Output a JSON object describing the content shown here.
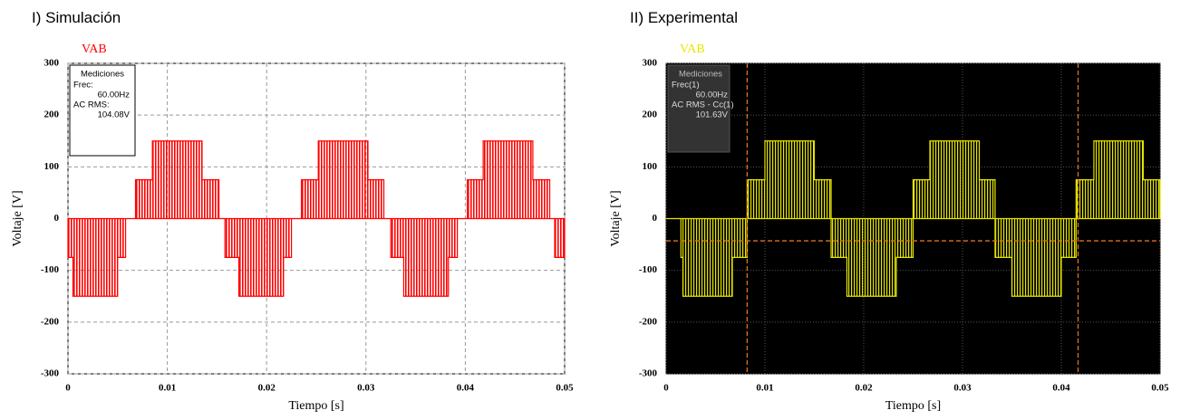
{
  "chart_data": [
    {
      "type": "line",
      "title": "I) Simulación",
      "xlabel": "Tiempo [s]",
      "ylabel": "Voltaje [V]",
      "xlim": [
        0,
        0.05
      ],
      "xticks": [
        0,
        0.01,
        0.02,
        0.03,
        0.04,
        0.05
      ],
      "ylim": [
        -300,
        300
      ],
      "yticks": [
        -300,
        -200,
        -100,
        0,
        100,
        200,
        300
      ],
      "grid": true,
      "background": "#ffffff",
      "grid_color": "#999999",
      "x": [
        0,
        0.0005,
        0.0005,
        0.005,
        0.005,
        0.0058,
        0.0058,
        0.0068,
        0.0068,
        0.0085,
        0.0085,
        0.0135,
        0.0135,
        0.0152,
        0.0152,
        0.0158,
        0.0158,
        0.0172,
        0.0172,
        0.0217,
        0.0217,
        0.0225,
        0.0225,
        0.0235,
        0.0235,
        0.0252,
        0.0252,
        0.0302,
        0.0302,
        0.0318,
        0.0318,
        0.0325,
        0.0325,
        0.0338,
        0.0338,
        0.0383,
        0.0383,
        0.0392,
        0.0392,
        0.0402,
        0.0402,
        0.0418,
        0.0418,
        0.0468,
        0.0468,
        0.0485,
        0.0485,
        0.049,
        0.049,
        0.05
      ],
      "series": [
        {
          "name": "VAB",
          "color": "#ff0000",
          "values": [
            -75,
            -75,
            -150,
            -150,
            -75,
            -75,
            0,
            0,
            75,
            75,
            150,
            150,
            75,
            75,
            0,
            0,
            -75,
            -75,
            -150,
            -150,
            -75,
            -75,
            0,
            0,
            75,
            75,
            150,
            150,
            75,
            75,
            0,
            0,
            -75,
            -75,
            -150,
            -150,
            -75,
            -75,
            0,
            0,
            75,
            75,
            150,
            150,
            75,
            75,
            0,
            0,
            -75,
            -75
          ]
        }
      ],
      "measurements": {
        "title": "Mediciones",
        "lines": [
          "Frec:",
          "60.00Hz",
          "AC RMS:",
          "104.08V"
        ]
      }
    },
    {
      "type": "line",
      "title": "II) Experimental",
      "xlabel": "Tiempo [s]",
      "ylabel": "Voltaje [V]",
      "xlim": [
        0,
        0.05
      ],
      "xticks": [
        0,
        0.01,
        0.02,
        0.03,
        0.04,
        0.05
      ],
      "ylim": [
        -300,
        300
      ],
      "yticks": [
        -300,
        -200,
        -100,
        0,
        100,
        200,
        300
      ],
      "grid": true,
      "background": "#000000",
      "grid_color": "#555555",
      "cursor_x": [
        0.0082,
        0.0417
      ],
      "cursor_y": -43,
      "cursor_color": "#e07020",
      "x": [
        0,
        0.0015,
        0.0015,
        0.0017,
        0.0017,
        0.0067,
        0.0067,
        0.0082,
        0.0082,
        0.01,
        0.01,
        0.015,
        0.015,
        0.0167,
        0.0167,
        0.0183,
        0.0183,
        0.0233,
        0.0233,
        0.025,
        0.025,
        0.0267,
        0.0267,
        0.0317,
        0.0317,
        0.0333,
        0.0333,
        0.035,
        0.035,
        0.04,
        0.04,
        0.0415,
        0.0415,
        0.0433,
        0.0433,
        0.0483,
        0.0483,
        0.05
      ],
      "series": [
        {
          "name": "VAB",
          "color": "#e6e600",
          "values": [
            0,
            0,
            -75,
            -75,
            -150,
            -150,
            -75,
            -75,
            75,
            75,
            150,
            150,
            75,
            75,
            -75,
            -75,
            -150,
            -150,
            -75,
            -75,
            75,
            75,
            150,
            150,
            75,
            75,
            -75,
            -75,
            -150,
            -150,
            -75,
            -75,
            75,
            75,
            150,
            150,
            75,
            75
          ]
        }
      ],
      "measurements": {
        "title": "Mediciones",
        "lines": [
          "Frec(1)",
          "60.00Hz",
          "AC RMS - Cc(1)",
          "101.63V"
        ]
      }
    }
  ]
}
